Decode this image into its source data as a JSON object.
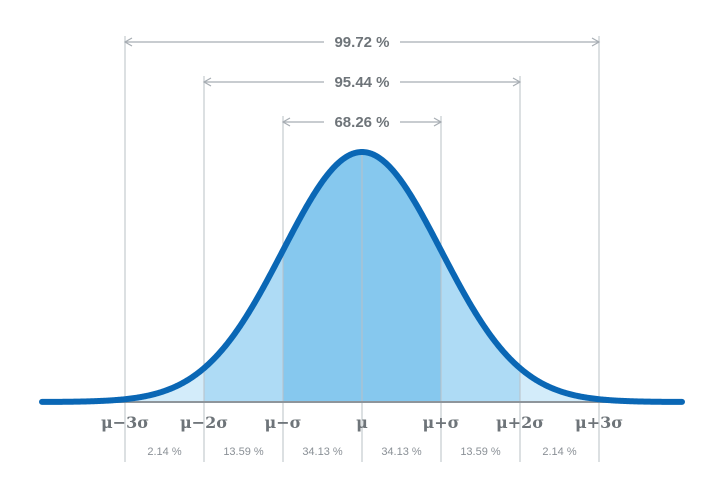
{
  "intervals": [
    {
      "label": "99.72 %",
      "from": -3,
      "to": 3
    },
    {
      "label": "95.44 %",
      "from": -2,
      "to": 2
    },
    {
      "label": "68.26 %",
      "from": -1,
      "to": 1
    }
  ],
  "axis_labels": [
    "μ−3σ",
    "μ−2σ",
    "μ−σ",
    "μ",
    "μ+σ",
    "μ+2σ",
    "μ+3σ"
  ],
  "segment_percents": [
    "2.14 %",
    "13.59 %",
    "34.13 %",
    "34.13 %",
    "13.59 %",
    "2.14 %"
  ],
  "colors": {
    "curve": "#0a67b5",
    "fill_inner": "#86c8ee",
    "fill_middle": "#aedbf5",
    "fill_outer": "#d3ecfa",
    "guide": "#b9c0c6",
    "text": "#6e7479"
  }
}
